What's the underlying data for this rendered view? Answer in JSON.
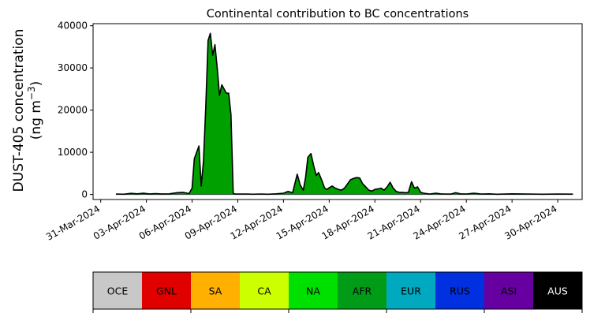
{
  "chart_data": {
    "type": "area",
    "title": "Continental contribution to BC concentrations",
    "ylabel_line1": "DUST-405 concentration",
    "ylabel_line2": "(ng m",
    "ylabel_unit_exp": "−3",
    "ylabel_close": ")",
    "ylim": [
      -1200,
      40500
    ],
    "yticks": [
      0,
      10000,
      20000,
      30000,
      40000
    ],
    "yticklabels": [
      "0",
      "10000",
      "20000",
      "30000",
      "40000"
    ],
    "x_unit": "days from 2024-03-31",
    "xlim": [
      -0.5,
      31.6
    ],
    "xticks": [
      0,
      3,
      6,
      9,
      12,
      15,
      18,
      21,
      24,
      27,
      30
    ],
    "xticklabels": [
      "31-Mar-2024",
      "03-Apr-2024",
      "06-Apr-2024",
      "09-Apr-2024",
      "12-Apr-2024",
      "15-Apr-2024",
      "18-Apr-2024",
      "21-Apr-2024",
      "24-Apr-2024",
      "27-Apr-2024",
      "30-Apr-2024"
    ],
    "dominant_series_color": "#00a000",
    "outline_color": "#000000",
    "total": {
      "x": [
        1.0,
        1.5,
        2.0,
        2.4,
        2.8,
        3.2,
        3.6,
        4.0,
        4.5,
        5.0,
        5.4,
        5.8,
        6.0,
        6.15,
        6.3,
        6.45,
        6.6,
        6.75,
        6.9,
        7.05,
        7.2,
        7.35,
        7.5,
        7.65,
        7.8,
        7.95,
        8.1,
        8.25,
        8.4,
        8.55,
        8.7,
        8.85,
        9.0,
        9.2,
        9.6,
        10.0,
        10.5,
        11.0,
        11.5,
        12.0,
        12.3,
        12.6,
        12.9,
        13.1,
        13.3,
        13.45,
        13.6,
        13.8,
        14.0,
        14.15,
        14.3,
        14.5,
        14.7,
        14.85,
        15.0,
        15.2,
        15.4,
        15.6,
        15.8,
        16.0,
        16.2,
        16.4,
        16.6,
        16.8,
        17.0,
        17.2,
        17.4,
        17.6,
        17.8,
        18.0,
        18.2,
        18.4,
        18.6,
        18.8,
        19.0,
        19.2,
        19.4,
        19.6,
        19.8,
        20.0,
        20.2,
        20.4,
        20.6,
        20.8,
        21.0,
        21.2,
        21.4,
        21.6,
        21.8,
        22.0,
        22.3,
        22.6,
        23.0,
        23.3,
        23.6,
        24.0,
        24.5,
        25.0,
        25.5,
        26.0,
        27.0,
        28.0,
        29.0,
        30.0,
        31.0
      ],
      "values": [
        100,
        50,
        250,
        150,
        280,
        120,
        200,
        120,
        150,
        400,
        500,
        200,
        1500,
        8500,
        10000,
        11500,
        2000,
        8000,
        21000,
        36500,
        38200,
        33000,
        35500,
        30000,
        23500,
        26000,
        25000,
        24000,
        24000,
        19000,
        200,
        100,
        100,
        100,
        100,
        50,
        100,
        50,
        150,
        300,
        700,
        400,
        4800,
        2200,
        1000,
        4000,
        8800,
        9700,
        6500,
        4500,
        5200,
        3500,
        1500,
        1200,
        1600,
        2000,
        1500,
        1200,
        1000,
        1500,
        2500,
        3500,
        3800,
        4000,
        3900,
        2500,
        1800,
        1000,
        800,
        1200,
        1300,
        1500,
        1000,
        1800,
        2900,
        1500,
        700,
        500,
        500,
        400,
        500,
        3000,
        1500,
        1800,
        500,
        300,
        200,
        100,
        200,
        300,
        150,
        100,
        100,
        400,
        150,
        100,
        300,
        100,
        150,
        50,
        150,
        100,
        50,
        100,
        80
      ]
    },
    "legend": {
      "placement": "bottom",
      "entries": [
        {
          "label": "OCE",
          "color": "#c8c8c8",
          "text_color": "#000000"
        },
        {
          "label": "GNL",
          "color": "#e00000",
          "text_color": "#000000"
        },
        {
          "label": "SA",
          "color": "#ffb000",
          "text_color": "#000000"
        },
        {
          "label": "CA",
          "color": "#ccff00",
          "text_color": "#000000"
        },
        {
          "label": "NA",
          "color": "#00e000",
          "text_color": "#000000"
        },
        {
          "label": "AFR",
          "color": "#009c18",
          "text_color": "#000000"
        },
        {
          "label": "EUR",
          "color": "#00a8c0",
          "text_color": "#000000"
        },
        {
          "label": "RUS",
          "color": "#0030e0",
          "text_color": "#000000"
        },
        {
          "label": "ASI",
          "color": "#6600a0",
          "text_color": "#000000"
        },
        {
          "label": "AUS",
          "color": "#000000",
          "text_color": "#ffffff"
        }
      ]
    }
  }
}
